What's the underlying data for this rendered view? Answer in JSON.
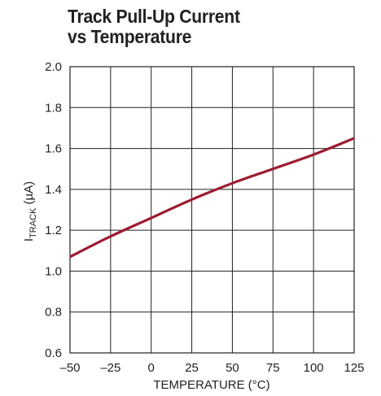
{
  "chart_data": {
    "type": "line",
    "title": "Track Pull-Up Current vs Temperature",
    "title_lines": [
      "Track Pull-Up Current",
      "vs Temperature"
    ],
    "xlabel": "TEMPERATURE (°C)",
    "ylabel": {
      "main": "I",
      "subscript": "TRACK",
      "unit": " (µA)"
    },
    "xlim": [
      -50,
      125
    ],
    "ylim": [
      0.6,
      2.0
    ],
    "x_ticks": [
      -50,
      -25,
      0,
      25,
      50,
      75,
      100,
      125
    ],
    "x_tick_labels": [
      "–50",
      "–25",
      "0",
      "25",
      "50",
      "75",
      "100",
      "125"
    ],
    "y_ticks": [
      0.6,
      0.8,
      1.0,
      1.2,
      1.4,
      1.6,
      1.8,
      2.0
    ],
    "y_tick_labels": [
      "0.6",
      "0.8",
      "1.0",
      "1.2",
      "1.4",
      "1.6",
      "1.8",
      "2.0"
    ],
    "grid": true,
    "series": [
      {
        "color": "#9b1b30",
        "x": [
          -50,
          -25,
          0,
          25,
          50,
          75,
          100,
          125
        ],
        "y": [
          1.07,
          1.17,
          1.26,
          1.35,
          1.43,
          1.5,
          1.57,
          1.65
        ]
      }
    ],
    "colors": {
      "line": "#9b1b30",
      "grid": "#231f20",
      "text": "#231f20"
    }
  }
}
